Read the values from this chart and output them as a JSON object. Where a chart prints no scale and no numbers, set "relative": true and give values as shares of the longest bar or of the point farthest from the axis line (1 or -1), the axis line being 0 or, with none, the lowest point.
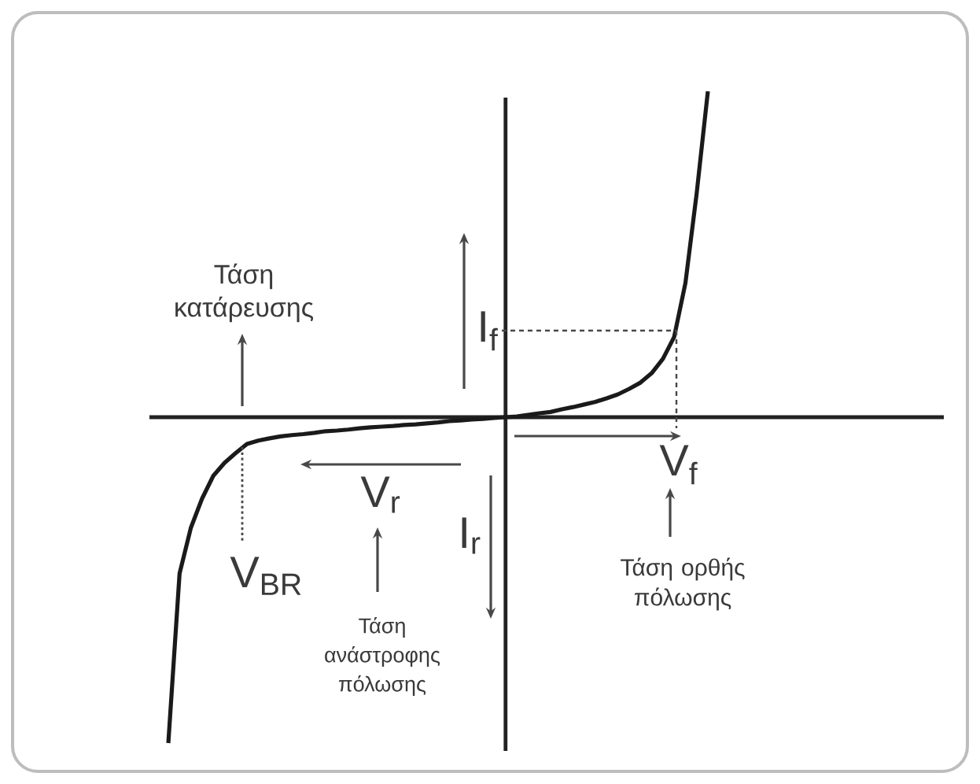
{
  "chart_data": {
    "type": "line",
    "relative": true,
    "color": "#1a1a1a",
    "marker": "none",
    "categories": [
      null,
      null,
      null,
      null,
      null,
      null,
      null,
      null,
      null,
      null,
      null,
      null,
      null,
      null,
      null,
      null,
      null,
      null,
      null,
      null,
      null,
      null,
      null,
      null,
      null,
      null,
      null,
      null,
      null,
      null,
      null,
      null,
      null,
      null,
      null,
      null,
      null,
      null,
      null,
      null,
      null,
      null,
      null,
      null,
      null,
      null,
      null,
      null,
      null
    ],
    "values": [
      -1.0,
      -0.48,
      -0.34,
      -0.25,
      -0.18,
      -0.14,
      -0.11,
      -0.082,
      -0.072,
      -0.065,
      -0.059,
      -0.055,
      -0.052,
      -0.048,
      -0.043,
      -0.041,
      -0.038,
      -0.034,
      -0.031,
      -0.029,
      -0.027,
      -0.024,
      -0.022,
      -0.019,
      -0.016,
      -0.012,
      -0.01,
      -0.007,
      -0.005,
      -0.002,
      0,
      0.002,
      0.007,
      0.012,
      0.016,
      0.024,
      0.031,
      0.039,
      0.047,
      0.058,
      0.07,
      0.087,
      0.106,
      0.135,
      0.179,
      0.246,
      0.411,
      0.686,
      1.0
    ],
    "annotations": [
      "Τάση κατάρευσης",
      "I$_{f}$",
      "V$_{f}$",
      "V$_{r}$",
      "I$_{r}$",
      "V$_{BR}$",
      "Τάση ανάστροφης πόλωσης",
      "Τάση ορθής πόλωσης"
    ]
  }
}
